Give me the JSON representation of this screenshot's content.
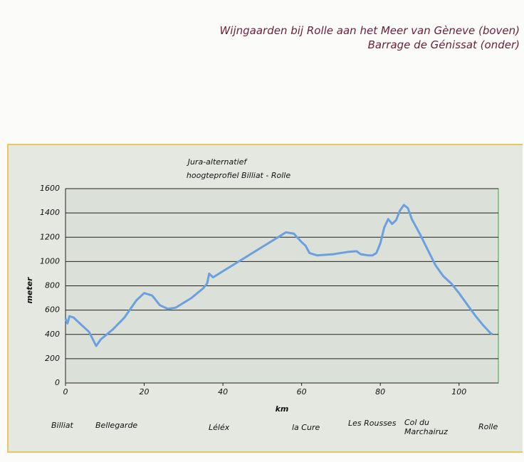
{
  "caption": [
    "Wijngaarden bij Rolle aan het Meer van Gèneve (boven)",
    "Barrage de Génissat (onder)"
  ],
  "chart_data": {
    "type": "line",
    "title": [
      "Jura-alternatief",
      "hoogteprofiel  Billiat - Rolle"
    ],
    "x_label": "km",
    "y_label": "meter",
    "x": [
      0,
      0.5,
      1,
      2,
      4,
      6,
      7.8,
      9,
      12,
      15,
      18,
      20,
      22,
      24,
      26,
      28,
      32,
      35,
      36,
      36.5,
      37.5,
      40,
      45,
      50,
      54,
      56,
      58,
      60,
      61,
      62,
      64,
      68,
      72,
      74,
      75,
      77,
      78,
      79,
      80,
      81,
      82,
      83,
      84,
      85,
      86,
      87,
      88,
      90,
      92,
      94,
      96,
      98,
      100,
      102,
      104,
      106,
      108,
      108.5
    ],
    "values": [
      530,
      490,
      550,
      540,
      480,
      420,
      305,
      360,
      440,
      540,
      680,
      740,
      720,
      640,
      610,
      620,
      700,
      780,
      820,
      900,
      870,
      920,
      1020,
      1120,
      1200,
      1240,
      1230,
      1160,
      1130,
      1070,
      1050,
      1060,
      1080,
      1085,
      1060,
      1050,
      1050,
      1070,
      1150,
      1280,
      1350,
      1310,
      1340,
      1420,
      1465,
      1440,
      1350,
      1230,
      1100,
      970,
      880,
      820,
      740,
      650,
      560,
      480,
      410,
      400
    ],
    "color": "#6a9fe0",
    "xlim": [
      0,
      110
    ],
    "ylim": [
      0,
      1600
    ],
    "xticks": [
      0,
      20,
      40,
      60,
      80,
      100
    ],
    "yticks": [
      0,
      200,
      400,
      600,
      800,
      1000,
      1200,
      1400,
      1600
    ],
    "grid": true,
    "places": [
      "Billiat",
      "Bellegarde",
      "Léléx",
      "la Cure",
      "Les Rousses",
      "Col du Marchairuz",
      "Rolle"
    ]
  }
}
